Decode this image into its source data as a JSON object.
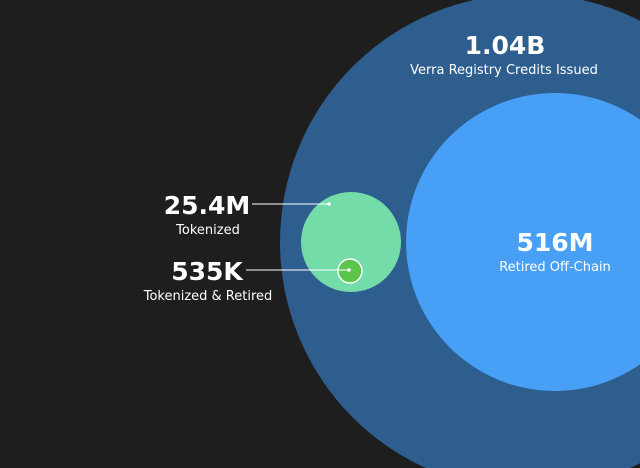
{
  "chart_data": {
    "type": "bubble",
    "series": [
      {
        "name": "Verra Registry Credits Issued",
        "value_label": "1.04B",
        "value": 1040000000,
        "color": "#2e5e8e"
      },
      {
        "name": "Retired Off-Chain",
        "value_label": "516M",
        "value": 516000000,
        "color": "#47a0f5"
      },
      {
        "name": "Tokenized",
        "value_label": "25.4M",
        "value": 25400000,
        "color": "#74dca9"
      },
      {
        "name": "Tokenized & Retired",
        "value_label": "535K",
        "value": 535000,
        "color": "#5ac54a"
      }
    ]
  }
}
